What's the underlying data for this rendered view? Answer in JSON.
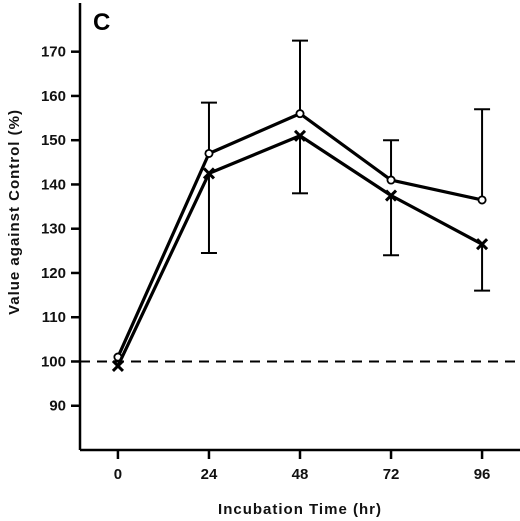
{
  "chart_data": {
    "type": "line",
    "panel_label": "C",
    "xlabel": "Incubation Time (hr)",
    "ylabel": "Value against Control (%)",
    "x": [
      0,
      24,
      48,
      72,
      96
    ],
    "x_ticks": [
      "0",
      "24",
      "48",
      "72",
      "96"
    ],
    "y_ticks": [
      "90",
      "100",
      "110",
      "120",
      "130",
      "140",
      "150",
      "160",
      "170"
    ],
    "xlim": [
      -10,
      106
    ],
    "ylim": [
      80,
      181
    ],
    "reference_line": {
      "y": 100,
      "style": "dashed"
    },
    "series": [
      {
        "marker": "circle",
        "values": [
          101,
          147,
          156,
          141,
          136.5
        ],
        "error_upper": [
          null,
          158.5,
          172.5,
          150,
          157
        ],
        "error_lower": [
          null,
          null,
          null,
          null,
          null
        ]
      },
      {
        "marker": "x",
        "values": [
          99,
          142.5,
          151,
          137.5,
          126.5
        ],
        "error_upper": [
          null,
          null,
          null,
          null,
          null
        ],
        "error_lower": [
          null,
          124.5,
          138,
          124,
          116
        ]
      }
    ],
    "colors": {
      "line": "#000000"
    }
  }
}
